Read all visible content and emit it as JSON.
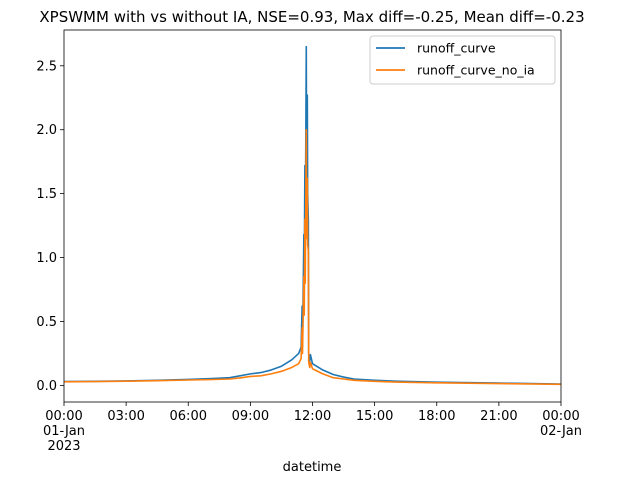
{
  "chart_data": {
    "type": "line",
    "title": "XPSWMM with vs without IA, NSE=0.93, Max diff=-0.25, Mean diff=-0.23",
    "xlabel": "datetime",
    "ylabel": "",
    "xlim": [
      "2023-01-01T00:00",
      "2023-01-02T00:00"
    ],
    "ylim": [
      -0.13,
      2.78
    ],
    "x_ticks": [
      {
        "at": "2023-01-01T00:00",
        "lines": [
          "00:00",
          "01-Jan",
          "2023"
        ]
      },
      {
        "at": "2023-01-01T03:00",
        "lines": [
          "03:00"
        ]
      },
      {
        "at": "2023-01-01T06:00",
        "lines": [
          "06:00"
        ]
      },
      {
        "at": "2023-01-01T09:00",
        "lines": [
          "09:00"
        ]
      },
      {
        "at": "2023-01-01T12:00",
        "lines": [
          "12:00"
        ]
      },
      {
        "at": "2023-01-01T15:00",
        "lines": [
          "15:00"
        ]
      },
      {
        "at": "2023-01-01T18:00",
        "lines": [
          "18:00"
        ]
      },
      {
        "at": "2023-01-01T21:00",
        "lines": [
          "21:00"
        ]
      },
      {
        "at": "2023-01-02T00:00",
        "lines": [
          "00:00",
          "02-Jan"
        ]
      }
    ],
    "y_ticks": [
      {
        "value": 0.0,
        "label": "0.0"
      },
      {
        "value": 0.5,
        "label": "0.5"
      },
      {
        "value": 1.0,
        "label": "1.0"
      },
      {
        "value": 1.5,
        "label": "1.5"
      },
      {
        "value": 2.0,
        "label": "2.0"
      },
      {
        "value": 2.5,
        "label": "2.5"
      }
    ],
    "grid": false,
    "legend_position": "top-right",
    "series": [
      {
        "name": "runoff_curve",
        "color": "#1f77b4",
        "points": [
          [
            "2023-01-01T00:00",
            0.03
          ],
          [
            "2023-01-01T01:30",
            0.032
          ],
          [
            "2023-01-01T03:00",
            0.035
          ],
          [
            "2023-01-01T04:30",
            0.04
          ],
          [
            "2023-01-01T06:00",
            0.047
          ],
          [
            "2023-01-01T07:00",
            0.052
          ],
          [
            "2023-01-01T08:00",
            0.06
          ],
          [
            "2023-01-01T08:30",
            0.075
          ],
          [
            "2023-01-01T09:00",
            0.09
          ],
          [
            "2023-01-01T09:30",
            0.1
          ],
          [
            "2023-01-01T10:00",
            0.12
          ],
          [
            "2023-01-01T10:30",
            0.15
          ],
          [
            "2023-01-01T11:00",
            0.2
          ],
          [
            "2023-01-01T11:20",
            0.25
          ],
          [
            "2023-01-01T11:27",
            0.3
          ],
          [
            "2023-01-01T11:30",
            0.62
          ],
          [
            "2023-01-01T11:31",
            0.3
          ],
          [
            "2023-01-01T11:35",
            1.18
          ],
          [
            "2023-01-01T11:36",
            0.85
          ],
          [
            "2023-01-01T11:38",
            1.72
          ],
          [
            "2023-01-01T11:39",
            1.1
          ],
          [
            "2023-01-01T11:42",
            2.65
          ],
          [
            "2023-01-01T11:43",
            1.6
          ],
          [
            "2023-01-01T11:45",
            2.27
          ],
          [
            "2023-01-01T11:46",
            1.5
          ],
          [
            "2023-01-01T11:48",
            1.29
          ],
          [
            "2023-01-01T11:49",
            0.25
          ],
          [
            "2023-01-01T11:52",
            0.19
          ],
          [
            "2023-01-01T11:54",
            0.24
          ],
          [
            "2023-01-01T12:00",
            0.17
          ],
          [
            "2023-01-01T12:30",
            0.12
          ],
          [
            "2023-01-01T13:00",
            0.085
          ],
          [
            "2023-01-01T13:30",
            0.065
          ],
          [
            "2023-01-01T14:00",
            0.05
          ],
          [
            "2023-01-01T15:00",
            0.04
          ],
          [
            "2023-01-01T16:00",
            0.033
          ],
          [
            "2023-01-01T18:00",
            0.025
          ],
          [
            "2023-01-01T21:00",
            0.018
          ],
          [
            "2023-01-02T00:00",
            0.01
          ]
        ]
      },
      {
        "name": "runoff_curve_no_ia",
        "color": "#ff7f0e",
        "points": [
          [
            "2023-01-01T00:00",
            0.028
          ],
          [
            "2023-01-01T01:30",
            0.03
          ],
          [
            "2023-01-01T03:00",
            0.033
          ],
          [
            "2023-01-01T04:30",
            0.037
          ],
          [
            "2023-01-01T06:00",
            0.042
          ],
          [
            "2023-01-01T07:00",
            0.045
          ],
          [
            "2023-01-01T08:00",
            0.05
          ],
          [
            "2023-01-01T08:30",
            0.058
          ],
          [
            "2023-01-01T09:00",
            0.07
          ],
          [
            "2023-01-01T09:30",
            0.075
          ],
          [
            "2023-01-01T10:00",
            0.09
          ],
          [
            "2023-01-01T10:30",
            0.11
          ],
          [
            "2023-01-01T11:00",
            0.14
          ],
          [
            "2023-01-01T11:20",
            0.17
          ],
          [
            "2023-01-01T11:27",
            0.21
          ],
          [
            "2023-01-01T11:30",
            0.45
          ],
          [
            "2023-01-01T11:31",
            0.25
          ],
          [
            "2023-01-01T11:35",
            0.85
          ],
          [
            "2023-01-01T11:36",
            0.55
          ],
          [
            "2023-01-01T11:38",
            1.3
          ],
          [
            "2023-01-01T11:39",
            0.8
          ],
          [
            "2023-01-01T11:42",
            2.0
          ],
          [
            "2023-01-01T11:43",
            1.15
          ],
          [
            "2023-01-01T11:45",
            1.62
          ],
          [
            "2023-01-01T11:46",
            1.1
          ],
          [
            "2023-01-01T11:48",
            1.05
          ],
          [
            "2023-01-01T11:49",
            0.18
          ],
          [
            "2023-01-01T11:52",
            0.14
          ],
          [
            "2023-01-01T11:54",
            0.18
          ],
          [
            "2023-01-01T12:00",
            0.13
          ],
          [
            "2023-01-01T12:30",
            0.09
          ],
          [
            "2023-01-01T13:00",
            0.06
          ],
          [
            "2023-01-01T13:30",
            0.05
          ],
          [
            "2023-01-01T14:00",
            0.04
          ],
          [
            "2023-01-01T15:00",
            0.032
          ],
          [
            "2023-01-01T16:00",
            0.026
          ],
          [
            "2023-01-01T18:00",
            0.02
          ],
          [
            "2023-01-01T21:00",
            0.014
          ],
          [
            "2023-01-02T00:00",
            0.008
          ]
        ]
      }
    ]
  }
}
